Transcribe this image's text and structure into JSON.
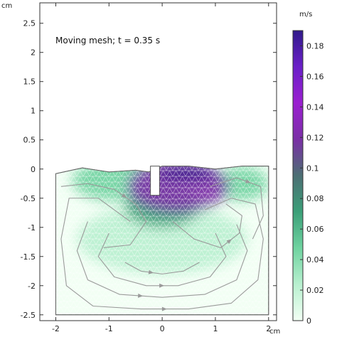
{
  "chart_data": {
    "type": "heatmap",
    "title": "",
    "annotation": "Moving mesh; t = 0.35 s",
    "xlabel": "cm",
    "ylabel": "cm",
    "xlim": [
      -2.3,
      2.15
    ],
    "ylim": [
      -2.6,
      2.85
    ],
    "x_ticks": [
      -2,
      -1,
      0,
      1,
      2
    ],
    "y_ticks": [
      2.5,
      2,
      1.5,
      1,
      0.5,
      0,
      -0.5,
      -1,
      -1.5,
      -2,
      -2.5
    ],
    "x_tick_labels": [
      "-2",
      "-1",
      "0",
      "1",
      "2"
    ],
    "y_tick_labels": [
      "2.5",
      "2",
      "1.5",
      "1",
      "0.5",
      "0",
      "-0.5",
      "-1",
      "-1.5",
      "-2",
      "-2.5"
    ],
    "colorbar": {
      "unit": "m/s",
      "min": 0,
      "max": 0.19,
      "ticks": [
        0,
        0.02,
        0.04,
        0.06,
        0.08,
        0.1,
        0.12,
        0.14,
        0.16,
        0.18
      ],
      "tick_labels": [
        "0",
        "0.02",
        "0.04",
        "0.06",
        "0.08",
        "0.1",
        "0.12",
        "0.14",
        "0.16",
        "0.18"
      ],
      "colors": [
        "#f2fff4",
        "#b8f0cf",
        "#6fd3a0",
        "#3b9f78",
        "#4c6f74",
        "#7a2fa6",
        "#9a1fd0",
        "#6a1fc8",
        "#301a8a"
      ]
    },
    "domain": {
      "x_range": [
        -2,
        2
      ],
      "bottom_y": -2.5,
      "top_y_left": -0.1,
      "top_y_right": 0.05,
      "free_surface": [
        [
          -2,
          -0.08
        ],
        [
          -1.5,
          0.02
        ],
        [
          -1,
          -0.05
        ],
        [
          -0.5,
          -0.02
        ],
        [
          -0.25,
          -0.05
        ],
        [
          0,
          0.05
        ],
        [
          0.5,
          0.05
        ],
        [
          1,
          0.0
        ],
        [
          1.5,
          0.05
        ],
        [
          2,
          0.05
        ]
      ]
    },
    "obstacle": {
      "x_range": [
        -0.22,
        -0.05
      ],
      "y_range": [
        -0.45,
        0.05
      ]
    },
    "speed_regions": [
      {
        "cx": 0.3,
        "cy": -0.3,
        "rx": 0.95,
        "ry": 0.45,
        "value": 0.12
      },
      {
        "cx": 0.45,
        "cy": -0.08,
        "rx": 0.6,
        "ry": 0.12,
        "value": 0.18
      },
      {
        "cx": 0.0,
        "cy": -0.65,
        "rx": 0.7,
        "ry": 0.35,
        "value": 0.06
      },
      {
        "cx": -0.9,
        "cy": -0.2,
        "rx": 0.8,
        "ry": 0.35,
        "value": 0.04
      },
      {
        "cx": 1.5,
        "cy": -0.25,
        "rx": 0.5,
        "ry": 0.3,
        "value": 0.05
      },
      {
        "cx": 0.0,
        "cy": -1.2,
        "rx": 1.6,
        "ry": 0.6,
        "value": 0.02
      }
    ],
    "streamlines": [
      {
        "points": [
          [
            -0.6,
            -0.9
          ],
          [
            -1.2,
            -0.5
          ],
          [
            -1.75,
            -0.5
          ],
          [
            -1.9,
            -1.2
          ],
          [
            -1.8,
            -2.0
          ],
          [
            -1.3,
            -2.35
          ],
          [
            -0.4,
            -2.4
          ],
          [
            0.5,
            -2.4
          ],
          [
            1.3,
            -2.3
          ],
          [
            1.8,
            -1.9
          ],
          [
            1.9,
            -1.2
          ],
          [
            1.75,
            -0.6
          ],
          [
            1.3,
            -0.5
          ],
          [
            0.8,
            -0.7
          ]
        ]
      },
      {
        "points": [
          [
            -1.4,
            -0.9
          ],
          [
            -1.6,
            -1.4
          ],
          [
            -1.4,
            -1.9
          ],
          [
            -0.8,
            -2.15
          ],
          [
            0.0,
            -2.2
          ],
          [
            0.8,
            -2.15
          ],
          [
            1.4,
            -1.9
          ],
          [
            1.6,
            -1.4
          ],
          [
            1.4,
            -0.95
          ]
        ]
      },
      {
        "points": [
          [
            -1.0,
            -1.1
          ],
          [
            -1.2,
            -1.5
          ],
          [
            -0.9,
            -1.85
          ],
          [
            -0.3,
            -2.0
          ],
          [
            0.3,
            -2.0
          ],
          [
            0.9,
            -1.85
          ],
          [
            1.2,
            -1.5
          ],
          [
            1.0,
            -1.1
          ]
        ]
      },
      {
        "points": [
          [
            -1.9,
            -0.3
          ],
          [
            -1.4,
            -0.25
          ],
          [
            -0.9,
            -0.35
          ],
          [
            -0.5,
            -0.6
          ],
          [
            -0.3,
            -0.9
          ],
          [
            -0.6,
            -1.3
          ],
          [
            -1.1,
            -1.35
          ]
        ]
      },
      {
        "points": [
          [
            0.2,
            -0.9
          ],
          [
            0.6,
            -1.2
          ],
          [
            1.1,
            -1.35
          ],
          [
            1.45,
            -1.1
          ],
          [
            1.5,
            -0.8
          ],
          [
            1.2,
            -0.6
          ]
        ]
      },
      {
        "points": [
          [
            -0.7,
            -1.6
          ],
          [
            -0.4,
            -1.75
          ],
          [
            0.0,
            -1.8
          ],
          [
            0.4,
            -1.75
          ],
          [
            0.7,
            -1.6
          ]
        ]
      },
      {
        "points": [
          [
            0.9,
            -0.3
          ],
          [
            1.4,
            -0.15
          ],
          [
            1.85,
            -0.3
          ],
          [
            1.9,
            -0.8
          ],
          [
            1.7,
            -1.2
          ]
        ]
      }
    ]
  }
}
